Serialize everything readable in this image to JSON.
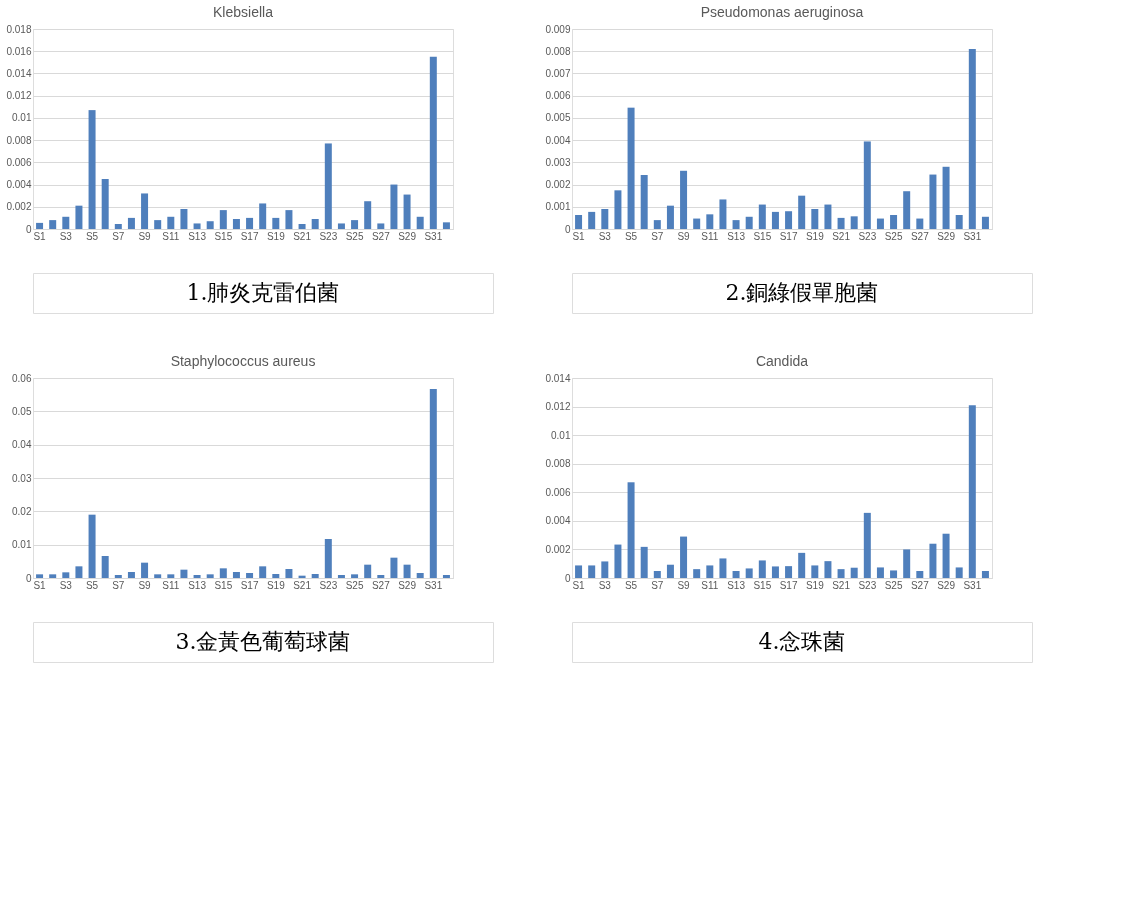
{
  "chart_data": [
    {
      "type": "bar",
      "title": "Klebsiella",
      "annotations": [
        "1.肺炎克雷伯菌"
      ],
      "categories": [
        "S1",
        null,
        "S3",
        null,
        "S5",
        null,
        "S7",
        null,
        "S9",
        null,
        "S11",
        null,
        "S13",
        null,
        "S15",
        null,
        "S17",
        null,
        "S19",
        null,
        "S21",
        null,
        "S23",
        null,
        "S25",
        null,
        "S27",
        null,
        "S29",
        null,
        "S31",
        null
      ],
      "series": [
        {
          "color": "#4f7fbc",
          "values": [
            0.00055,
            0.0008,
            0.0011,
            0.0021,
            0.0107,
            0.0045,
            0.00045,
            0.001,
            0.0032,
            0.0008,
            0.0011,
            0.0018,
            0.0005,
            0.0007,
            0.0017,
            0.0009,
            0.001,
            0.0023,
            0.001,
            0.0017,
            0.00045,
            0.0009,
            0.0077,
            0.0005,
            0.0008,
            0.0025,
            0.0005,
            0.004,
            0.0031,
            0.0011,
            0.0155,
            0.0006
          ]
        }
      ],
      "ylim": [
        0,
        0.018
      ],
      "yticks": [
        0,
        0.002,
        0.004,
        0.006,
        0.008,
        0.01,
        0.012,
        0.014,
        0.016,
        0.018
      ],
      "grid": "y"
    },
    {
      "type": "bar",
      "title": "Pseudomonas aeruginosa",
      "annotations": [
        "2.銅綠假單胞菌"
      ],
      "categories": [
        "S1",
        null,
        "S3",
        null,
        "S5",
        null,
        "S7",
        null,
        "S9",
        null,
        "S11",
        null,
        "S13",
        null,
        "S15",
        null,
        "S17",
        null,
        "S19",
        null,
        "S21",
        null,
        "S23",
        null,
        "S25",
        null,
        "S27",
        null,
        "S29",
        null,
        "S31",
        null
      ],
      "series": [
        {
          "color": "#4f7fbc",
          "values": [
            0.00063,
            0.00077,
            0.0009,
            0.00174,
            0.00546,
            0.00243,
            0.0004,
            0.00105,
            0.00262,
            0.00047,
            0.00066,
            0.00133,
            0.0004,
            0.00055,
            0.0011,
            0.00077,
            0.0008,
            0.0015,
            0.0009,
            0.0011,
            0.0005,
            0.00057,
            0.00394,
            0.00047,
            0.00063,
            0.0017,
            0.00047,
            0.00245,
            0.0028,
            0.00063,
            0.0081,
            0.00055
          ]
        }
      ],
      "ylim": [
        0,
        0.009
      ],
      "yticks": [
        0,
        0.001,
        0.002,
        0.003,
        0.004,
        0.005,
        0.006,
        0.007,
        0.008,
        0.009
      ],
      "grid": "y"
    },
    {
      "type": "bar",
      "title": "Staphylococcus aureus",
      "annotations": [
        "3.金黃色葡萄球菌"
      ],
      "categories": [
        "S1",
        null,
        "S3",
        null,
        "S5",
        null,
        "S7",
        null,
        "S9",
        null,
        "S11",
        null,
        "S13",
        null,
        "S15",
        null,
        "S17",
        null,
        "S19",
        null,
        "S21",
        null,
        "S23",
        null,
        "S25",
        null,
        "S27",
        null,
        "S29",
        null,
        "S31",
        null
      ],
      "series": [
        {
          "color": "#4f7fbc",
          "values": [
            0.0011,
            0.0011,
            0.0017,
            0.0035,
            0.019,
            0.0066,
            0.0009,
            0.0018,
            0.0046,
            0.0011,
            0.0011,
            0.0025,
            0.0009,
            0.0011,
            0.0029,
            0.0018,
            0.0015,
            0.0035,
            0.0012,
            0.0027,
            0.0007,
            0.0012,
            0.0117,
            0.0009,
            0.0011,
            0.004,
            0.0009,
            0.0061,
            0.004,
            0.0015,
            0.0567,
            0.0009
          ]
        }
      ],
      "ylim": [
        0,
        0.06
      ],
      "yticks": [
        0,
        0.01,
        0.02,
        0.03,
        0.04,
        0.05,
        0.06
      ],
      "grid": "y"
    },
    {
      "type": "bar",
      "title": "Candida",
      "annotations": [
        "4.念珠菌"
      ],
      "categories": [
        "S1",
        null,
        "S3",
        null,
        "S5",
        null,
        "S7",
        null,
        "S9",
        null,
        "S11",
        null,
        "S13",
        null,
        "S15",
        null,
        "S17",
        null,
        "S19",
        null,
        "S21",
        null,
        "S23",
        null,
        "S25",
        null,
        "S27",
        null,
        "S29",
        null,
        "S31",
        null
      ],
      "series": [
        {
          "color": "#4f7fbc",
          "values": [
            0.00088,
            0.00088,
            0.00116,
            0.00234,
            0.0067,
            0.00218,
            0.00049,
            0.00093,
            0.0029,
            0.00062,
            0.00088,
            0.00137,
            0.00049,
            0.00067,
            0.00123,
            0.00081,
            0.00083,
            0.00176,
            0.00088,
            0.00118,
            0.00062,
            0.00072,
            0.00456,
            0.00074,
            0.00053,
            0.002,
            0.00049,
            0.0024,
            0.0031,
            0.00074,
            0.0121,
            0.00049
          ]
        }
      ],
      "ylim": [
        0,
        0.014
      ],
      "yticks": [
        0,
        0.002,
        0.004,
        0.006,
        0.008,
        0.01,
        0.012,
        0.014
      ],
      "grid": "y"
    }
  ]
}
